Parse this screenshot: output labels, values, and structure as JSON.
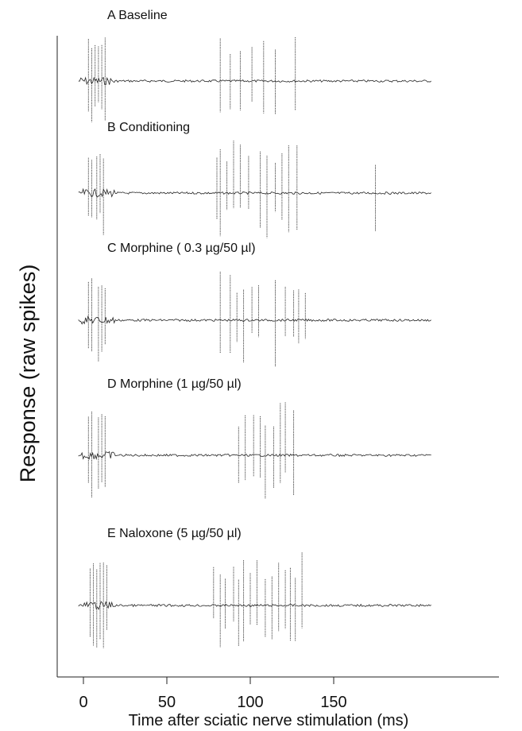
{
  "chart_data": {
    "type": "raster",
    "ylabel": "Response (raw spikes)",
    "xlabel": "Time after sciatic nerve stimulation (ms)",
    "xlim": [
      -10,
      215
    ],
    "xticks": [
      0,
      50,
      100,
      150
    ],
    "panels": [
      {
        "label": "A Baseline",
        "spikes_ms": [
          3,
          5,
          7,
          9,
          11,
          13,
          82,
          88,
          94,
          101,
          108,
          115,
          127
        ]
      },
      {
        "label": "B Conditioning",
        "spikes_ms": [
          3,
          5,
          8,
          10,
          12,
          80,
          82,
          86,
          90,
          94,
          99,
          106,
          110,
          115,
          119,
          123,
          128,
          175
        ]
      },
      {
        "label": "C Morphine ( 0.3  µg/50 µl)",
        "spikes_ms": [
          3,
          5,
          9,
          11,
          13,
          82,
          88,
          92,
          96,
          101,
          105,
          115,
          121,
          126,
          129,
          133
        ]
      },
      {
        "label": "D Morphine (1 µg/50 µl)",
        "spikes_ms": [
          3,
          5,
          9,
          11,
          13,
          93,
          97,
          102,
          106,
          109,
          114,
          118,
          121,
          126
        ]
      },
      {
        "label": "E Naloxone (5 µg/50 µl)",
        "spikes_ms": [
          4,
          6,
          8,
          10,
          12,
          14,
          78,
          82,
          85,
          90,
          93,
          96,
          100,
          104,
          109,
          113,
          117,
          121,
          124,
          127,
          131
        ]
      }
    ]
  }
}
